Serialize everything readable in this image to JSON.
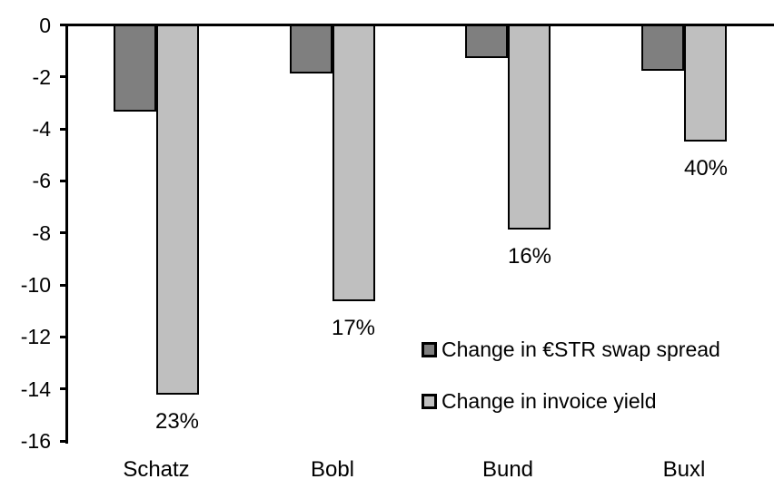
{
  "chart_data": {
    "type": "bar",
    "title": "",
    "xlabel": "",
    "ylabel": "",
    "categories": [
      "Schatz",
      "Bobl",
      "Bund",
      "Buxl"
    ],
    "series": [
      {
        "name": "Change in €STR swap spread",
        "color": "#7f7f7f",
        "values": [
          -3.3,
          -1.85,
          -1.25,
          -1.75
        ]
      },
      {
        "name": "Change in invoice yield",
        "color": "#bfbfbf",
        "values": [
          -14.2,
          -10.6,
          -7.85,
          -4.45
        ],
        "point_labels": [
          "23%",
          "17%",
          "16%",
          "40%"
        ]
      }
    ],
    "ylim": [
      -16,
      0
    ],
    "yticks": [
      0,
      -2,
      -4,
      -6,
      -8,
      -10,
      -12,
      -14,
      -16
    ],
    "grid": false,
    "legend_position": "inside-lower-right",
    "axis_color": "#000000",
    "background_color": "#ffffff"
  }
}
